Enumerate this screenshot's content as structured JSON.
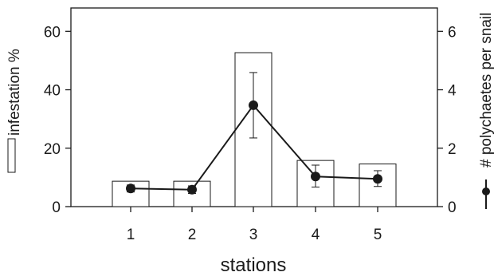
{
  "chart_data": {
    "type": "bar",
    "categories": [
      "1",
      "2",
      "3",
      "4",
      "5"
    ],
    "xlabel": "stations",
    "bar_series": {
      "name": "infestation %",
      "axis": "left",
      "values": [
        8.7,
        8.7,
        52.7,
        15.8,
        14.6
      ],
      "ylim": [
        0,
        68
      ],
      "ticks": [
        0,
        20,
        40,
        60
      ]
    },
    "line_series": {
      "name": "# polychaetes per snail",
      "axis": "right",
      "values": [
        0.62,
        0.58,
        3.47,
        1.03,
        0.95
      ],
      "error_low": [
        0.5,
        0.45,
        2.35,
        0.67,
        0.69
      ],
      "error_high": [
        0.74,
        0.71,
        4.59,
        1.42,
        1.23
      ],
      "ylim": [
        0,
        6.8
      ],
      "ticks": [
        0,
        2,
        4,
        6
      ]
    },
    "colors": {
      "axis": "#1a1a1a",
      "bar_fill": "#ffffff",
      "line": "#1a1a1a",
      "marker": "#1a1a1a"
    }
  }
}
